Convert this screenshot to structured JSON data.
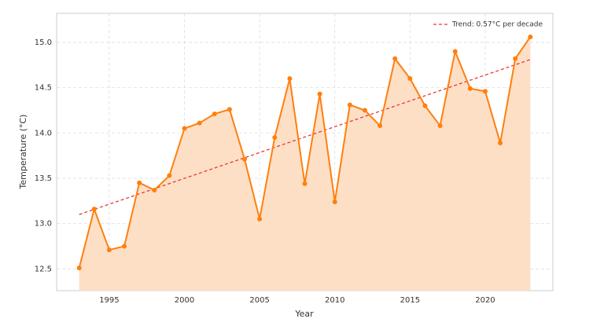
{
  "chart_data": {
    "type": "line",
    "xlabel": "Year",
    "ylabel": "Temperature (°C)",
    "x": [
      1993,
      1994,
      1995,
      1996,
      1997,
      1998,
      1999,
      2000,
      2001,
      2002,
      2003,
      2004,
      2005,
      2006,
      2007,
      2008,
      2009,
      2010,
      2011,
      2012,
      2013,
      2014,
      2015,
      2016,
      2017,
      2018,
      2019,
      2020,
      2021,
      2022,
      2023
    ],
    "series": [
      {
        "color": "#ff7f0e",
        "area_color": "#fddfc6",
        "values": [
          12.51,
          13.16,
          12.71,
          12.75,
          13.45,
          13.37,
          13.53,
          14.05,
          14.11,
          14.21,
          14.26,
          13.71,
          13.05,
          13.95,
          14.6,
          13.44,
          14.43,
          13.24,
          14.31,
          14.25,
          14.08,
          14.82,
          14.6,
          14.3,
          14.08,
          14.9,
          14.49,
          14.46,
          13.89,
          14.82,
          15.06
        ]
      }
    ],
    "trend": {
      "name": "Trend: 0.57°C per decade",
      "color": "#e8392f",
      "x": [
        1993,
        2023
      ],
      "values": [
        13.1,
        14.81
      ]
    },
    "xlim": [
      1991.5,
      2024.5
    ],
    "xticks": [
      1995,
      2000,
      2005,
      2010,
      2015,
      2020
    ],
    "ylim": [
      12.26,
      15.32
    ],
    "yticks": [
      12.5,
      {
        "value": 13,
        "label": "13.0"
      },
      13.5,
      {
        "value": 14,
        "label": "14.0"
      },
      14.5,
      {
        "value": 15,
        "label": "15.0"
      }
    ],
    "grid": true,
    "legend": "upper right"
  }
}
